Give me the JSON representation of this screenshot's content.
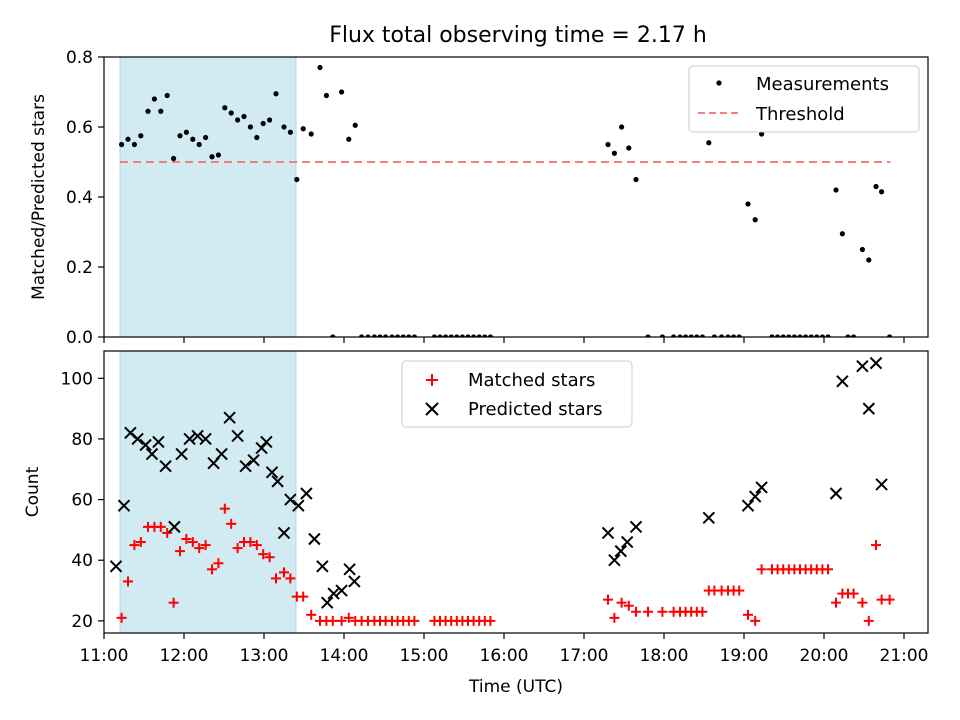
{
  "title": "Flux total observing time = 2.17 h",
  "colors": {
    "shade": "#add8e6",
    "threshold": "#f08080",
    "measurement": "#000000",
    "matched": "#ff0000",
    "predicted": "#000000"
  },
  "chart_data": [
    {
      "type": "scatter",
      "panel": "top",
      "ylabel": "Matched/Predicted stars",
      "xlabel": "",
      "xlim": [
        11.0,
        21.3
      ],
      "ylim": [
        0,
        0.8
      ],
      "yticks": [
        0.0,
        0.2,
        0.4,
        0.6,
        0.8
      ],
      "ytick_labels": [
        "0.0",
        "0.2",
        "0.4",
        "0.6",
        "0.8"
      ],
      "shaded_span": [
        11.2,
        13.4
      ],
      "legend": {
        "position": "upper right",
        "entries": [
          "Measurements",
          "Threshold"
        ]
      },
      "threshold": {
        "name": "Threshold",
        "value": 0.5,
        "x": [
          11.2,
          20.83
        ]
      },
      "series": [
        {
          "name": "Measurements",
          "marker": "dot",
          "points": [
            [
              11.22,
              0.55
            ],
            [
              11.3,
              0.565
            ],
            [
              11.38,
              0.55
            ],
            [
              11.46,
              0.575
            ],
            [
              11.55,
              0.645
            ],
            [
              11.63,
              0.68
            ],
            [
              11.71,
              0.645
            ],
            [
              11.79,
              0.69
            ],
            [
              11.87,
              0.51
            ],
            [
              11.95,
              0.575
            ],
            [
              12.03,
              0.585
            ],
            [
              12.11,
              0.565
            ],
            [
              12.19,
              0.55
            ],
            [
              12.27,
              0.57
            ],
            [
              12.35,
              0.515
            ],
            [
              12.43,
              0.52
            ],
            [
              12.51,
              0.655
            ],
            [
              12.59,
              0.64
            ],
            [
              12.67,
              0.62
            ],
            [
              12.75,
              0.63
            ],
            [
              12.83,
              0.6
            ],
            [
              12.91,
              0.57
            ],
            [
              12.99,
              0.61
            ],
            [
              13.07,
              0.62
            ],
            [
              13.15,
              0.695
            ],
            [
              13.25,
              0.6
            ],
            [
              13.33,
              0.585
            ],
            [
              13.41,
              0.45
            ],
            [
              13.49,
              0.595
            ],
            [
              13.59,
              0.58
            ],
            [
              13.7,
              0.77
            ],
            [
              13.78,
              0.69
            ],
            [
              13.86,
              0.0
            ],
            [
              13.97,
              0.7
            ],
            [
              14.06,
              0.565
            ],
            [
              14.14,
              0.605
            ],
            [
              14.22,
              0.0
            ],
            [
              14.3,
              0.0
            ],
            [
              14.38,
              0.0
            ],
            [
              14.45,
              0.0
            ],
            [
              14.52,
              0.0
            ],
            [
              14.6,
              0.0
            ],
            [
              14.67,
              0.0
            ],
            [
              14.74,
              0.0
            ],
            [
              14.81,
              0.0
            ],
            [
              14.88,
              0.0
            ],
            [
              15.13,
              0.0
            ],
            [
              15.2,
              0.0
            ],
            [
              15.27,
              0.0
            ],
            [
              15.34,
              0.0
            ],
            [
              15.41,
              0.0
            ],
            [
              15.48,
              0.0
            ],
            [
              15.55,
              0.0
            ],
            [
              15.62,
              0.0
            ],
            [
              15.69,
              0.0
            ],
            [
              15.76,
              0.0
            ],
            [
              15.83,
              0.0
            ],
            [
              17.3,
              0.55
            ],
            [
              17.38,
              0.525
            ],
            [
              17.47,
              0.6
            ],
            [
              17.56,
              0.54
            ],
            [
              17.65,
              0.45
            ],
            [
              17.8,
              0.0
            ],
            [
              17.98,
              0.0
            ],
            [
              18.12,
              0.0
            ],
            [
              18.2,
              0.0
            ],
            [
              18.27,
              0.0
            ],
            [
              18.34,
              0.0
            ],
            [
              18.41,
              0.0
            ],
            [
              18.48,
              0.0
            ],
            [
              18.56,
              0.555
            ],
            [
              18.63,
              0.0
            ],
            [
              18.72,
              0.0
            ],
            [
              18.8,
              0.0
            ],
            [
              18.87,
              0.0
            ],
            [
              18.94,
              0.0
            ],
            [
              19.05,
              0.38
            ],
            [
              19.14,
              0.335
            ],
            [
              19.22,
              0.58
            ],
            [
              19.35,
              0.0
            ],
            [
              19.42,
              0.0
            ],
            [
              19.49,
              0.0
            ],
            [
              19.56,
              0.0
            ],
            [
              19.63,
              0.0
            ],
            [
              19.7,
              0.0
            ],
            [
              19.77,
              0.0
            ],
            [
              19.84,
              0.0
            ],
            [
              19.91,
              0.0
            ],
            [
              19.98,
              0.0
            ],
            [
              20.05,
              0.0
            ],
            [
              20.15,
              0.42
            ],
            [
              20.23,
              0.295
            ],
            [
              20.3,
              0.0
            ],
            [
              20.37,
              0.0
            ],
            [
              20.48,
              0.25
            ],
            [
              20.56,
              0.22
            ],
            [
              20.65,
              0.43
            ],
            [
              20.72,
              0.415
            ],
            [
              20.82,
              0.0
            ]
          ]
        }
      ]
    },
    {
      "type": "scatter",
      "panel": "bottom",
      "ylabel": "Count",
      "xlabel": "Time (UTC)",
      "xlim": [
        11.0,
        21.3
      ],
      "ylim": [
        16,
        109
      ],
      "yticks": [
        20,
        40,
        60,
        80,
        100
      ],
      "ytick_labels": [
        "20",
        "40",
        "60",
        "80",
        "100"
      ],
      "xticks": [
        11,
        12,
        13,
        14,
        15,
        16,
        17,
        18,
        19,
        20,
        21
      ],
      "xtick_labels": [
        "11:00",
        "12:00",
        "13:00",
        "14:00",
        "15:00",
        "16:00",
        "17:00",
        "18:00",
        "19:00",
        "20:00",
        "21:00"
      ],
      "shaded_span": [
        11.2,
        13.4
      ],
      "legend": {
        "position": "upper center",
        "entries": [
          "Matched stars",
          "Predicted stars"
        ]
      },
      "series": [
        {
          "name": "Matched stars",
          "marker": "plus",
          "points": [
            [
              11.22,
              21
            ],
            [
              11.3,
              33
            ],
            [
              11.38,
              45
            ],
            [
              11.46,
              46
            ],
            [
              11.55,
              51
            ],
            [
              11.63,
              51
            ],
            [
              11.71,
              51
            ],
            [
              11.79,
              49
            ],
            [
              11.87,
              26
            ],
            [
              11.95,
              43
            ],
            [
              12.03,
              47
            ],
            [
              12.11,
              46
            ],
            [
              12.19,
              44
            ],
            [
              12.27,
              45
            ],
            [
              12.35,
              37
            ],
            [
              12.43,
              39
            ],
            [
              12.51,
              57
            ],
            [
              12.59,
              52
            ],
            [
              12.67,
              44
            ],
            [
              12.75,
              46
            ],
            [
              12.83,
              46
            ],
            [
              12.91,
              45
            ],
            [
              12.99,
              42
            ],
            [
              13.07,
              41
            ],
            [
              13.15,
              34
            ],
            [
              13.25,
              36
            ],
            [
              13.33,
              34
            ],
            [
              13.41,
              28
            ],
            [
              13.49,
              28
            ],
            [
              13.59,
              22
            ],
            [
              13.7,
              20
            ],
            [
              13.78,
              20
            ],
            [
              13.86,
              20
            ],
            [
              13.97,
              20
            ],
            [
              14.06,
              21
            ],
            [
              14.14,
              20
            ],
            [
              14.22,
              20
            ],
            [
              14.3,
              20
            ],
            [
              14.38,
              20
            ],
            [
              14.45,
              20
            ],
            [
              14.52,
              20
            ],
            [
              14.6,
              20
            ],
            [
              14.67,
              20
            ],
            [
              14.74,
              20
            ],
            [
              14.81,
              20
            ],
            [
              14.88,
              20
            ],
            [
              15.13,
              20
            ],
            [
              15.2,
              20
            ],
            [
              15.27,
              20
            ],
            [
              15.34,
              20
            ],
            [
              15.41,
              20
            ],
            [
              15.48,
              20
            ],
            [
              15.55,
              20
            ],
            [
              15.62,
              20
            ],
            [
              15.69,
              20
            ],
            [
              15.76,
              20
            ],
            [
              15.83,
              20
            ],
            [
              17.3,
              27
            ],
            [
              17.38,
              21
            ],
            [
              17.47,
              26
            ],
            [
              17.56,
              25
            ],
            [
              17.65,
              23
            ],
            [
              17.8,
              23
            ],
            [
              17.98,
              23
            ],
            [
              18.12,
              23
            ],
            [
              18.2,
              23
            ],
            [
              18.27,
              23
            ],
            [
              18.34,
              23
            ],
            [
              18.41,
              23
            ],
            [
              18.48,
              23
            ],
            [
              18.56,
              30
            ],
            [
              18.63,
              30
            ],
            [
              18.72,
              30
            ],
            [
              18.8,
              30
            ],
            [
              18.87,
              30
            ],
            [
              18.94,
              30
            ],
            [
              19.05,
              22
            ],
            [
              19.14,
              20
            ],
            [
              19.22,
              37
            ],
            [
              19.35,
              37
            ],
            [
              19.42,
              37
            ],
            [
              19.49,
              37
            ],
            [
              19.56,
              37
            ],
            [
              19.63,
              37
            ],
            [
              19.7,
              37
            ],
            [
              19.77,
              37
            ],
            [
              19.84,
              37
            ],
            [
              19.91,
              37
            ],
            [
              19.98,
              37
            ],
            [
              20.05,
              37
            ],
            [
              20.15,
              26
            ],
            [
              20.23,
              29
            ],
            [
              20.3,
              29
            ],
            [
              20.37,
              29
            ],
            [
              20.48,
              26
            ],
            [
              20.56,
              20
            ],
            [
              20.65,
              45
            ],
            [
              20.72,
              27
            ],
            [
              20.82,
              27
            ]
          ]
        },
        {
          "name": "Predicted stars",
          "marker": "x",
          "points": [
            [
              11.15,
              38
            ],
            [
              11.25,
              58
            ],
            [
              11.33,
              82
            ],
            [
              11.42,
              80
            ],
            [
              11.52,
              78
            ],
            [
              11.6,
              75
            ],
            [
              11.68,
              79
            ],
            [
              11.77,
              71
            ],
            [
              11.88,
              51
            ],
            [
              11.97,
              75
            ],
            [
              12.07,
              80
            ],
            [
              12.17,
              81
            ],
            [
              12.27,
              80
            ],
            [
              12.37,
              72
            ],
            [
              12.47,
              75
            ],
            [
              12.57,
              87
            ],
            [
              12.67,
              81
            ],
            [
              12.77,
              71
            ],
            [
              12.87,
              73
            ],
            [
              12.97,
              77
            ],
            [
              13.03,
              79
            ],
            [
              13.1,
              69
            ],
            [
              13.17,
              66
            ],
            [
              13.25,
              49
            ],
            [
              13.33,
              60
            ],
            [
              13.43,
              58
            ],
            [
              13.53,
              62
            ],
            [
              13.63,
              47
            ],
            [
              13.73,
              38
            ],
            [
              13.79,
              26
            ],
            [
              13.87,
              29
            ],
            [
              13.97,
              30
            ],
            [
              14.07,
              37
            ],
            [
              14.13,
              33
            ],
            [
              17.3,
              49
            ],
            [
              17.38,
              40
            ],
            [
              17.46,
              43
            ],
            [
              17.54,
              46
            ],
            [
              17.65,
              51
            ],
            [
              18.56,
              54
            ],
            [
              19.05,
              58
            ],
            [
              19.14,
              61
            ],
            [
              19.22,
              64
            ],
            [
              20.15,
              62
            ],
            [
              20.23,
              99
            ],
            [
              20.48,
              104
            ],
            [
              20.56,
              90
            ],
            [
              20.65,
              105
            ],
            [
              20.72,
              65
            ]
          ]
        }
      ]
    }
  ]
}
